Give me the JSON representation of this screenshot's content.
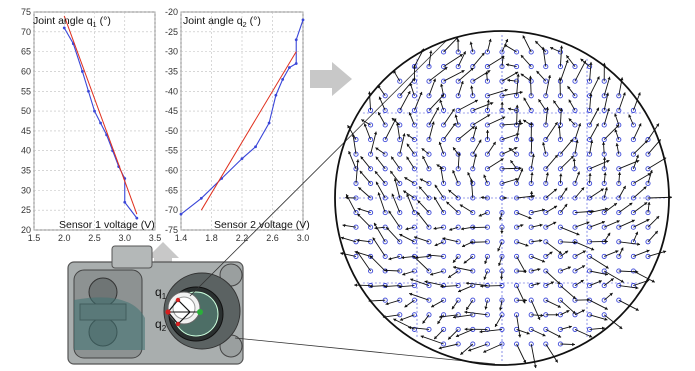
{
  "figure": {
    "panels": [
      {
        "title_prefix": "Joint angle q",
        "title_sub": "1",
        "title_suffix": " (°)",
        "xlabel": "Sensor 1 voltage (V)"
      },
      {
        "title_prefix": "Joint angle q",
        "title_sub": "2",
        "title_suffix": " (°)",
        "xlabel": "Sensor 2 voltage (V)"
      }
    ],
    "mechanism": {
      "q1_label": "q",
      "q1_sub": "1",
      "q2_label": "q",
      "q2_sub": "2"
    },
    "colors": {
      "measured": "#3a46d8",
      "fit": "#e0301e",
      "arrow": "#111111",
      "grid": "#3a46d8",
      "block_arrow": "#c8c8c8"
    }
  },
  "chart_data": [
    {
      "type": "line",
      "title": "Joint angle q1 (°)",
      "xlabel": "Sensor 1 voltage (V)",
      "xlim": [
        1.5,
        3.5
      ],
      "ylim": [
        20,
        75
      ],
      "xticks": [
        "1.5",
        "2.0",
        "2.5",
        "3.0",
        "3.5"
      ],
      "yticks": [
        "75",
        "70",
        "65",
        "60",
        "55",
        "50",
        "45",
        "40",
        "35",
        "30",
        "25",
        "20"
      ],
      "series": [
        {
          "x": [
            2.0,
            2.15,
            2.3,
            2.4,
            2.5,
            2.6,
            2.7,
            2.8,
            2.9,
            3.0,
            3.0,
            3.2
          ],
          "y": [
            71,
            67,
            60,
            55,
            50,
            47,
            44,
            40,
            36,
            33,
            27,
            23
          ]
        },
        {
          "x": [
            2.0,
            3.2
          ],
          "y": [
            74,
            24
          ]
        }
      ]
    },
    {
      "type": "line",
      "title": "Joint angle q2 (°)",
      "xlabel": "Sensor 2 voltage (V)",
      "xlim": [
        1.3,
        3.1
      ],
      "ylim": [
        -75,
        -20
      ],
      "xticks": [
        "1.4",
        "1.8",
        "2.2",
        "2.6",
        "3.0"
      ],
      "yticks": [
        "-20",
        "-25",
        "-30",
        "-35",
        "-40",
        "-45",
        "-50",
        "-55",
        "-60",
        "-65",
        "-70",
        "-75"
      ],
      "series": [
        {
          "x": [
            1.3,
            1.6,
            1.9,
            2.2,
            2.4,
            2.6,
            2.7,
            2.8,
            2.9,
            3.0,
            3.0,
            3.1
          ],
          "y": [
            -71,
            -67,
            -62,
            -57,
            -54,
            -48,
            -41,
            -37,
            -34,
            -33,
            -27,
            -22
          ]
        },
        {
          "x": [
            1.6,
            3.0
          ],
          "y": [
            -70,
            -30
          ]
        }
      ]
    }
  ]
}
